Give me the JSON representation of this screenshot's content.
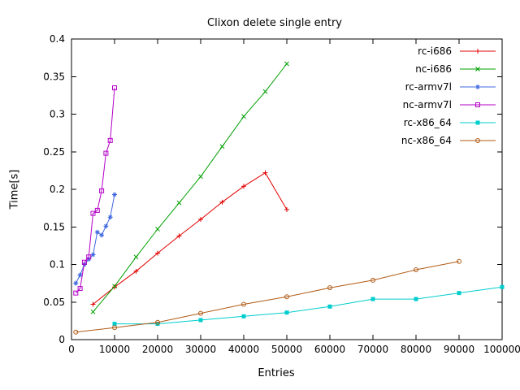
{
  "page": {
    "background": "#ffffff",
    "text_color": "#000000"
  },
  "chart_data": {
    "type": "line",
    "title": "Clixon delete single entry",
    "xlabel": "Entries",
    "ylabel": "Time[s]",
    "xlim": [
      0,
      100000
    ],
    "ylim": [
      0,
      0.4
    ],
    "x_ticks": [
      0,
      10000,
      20000,
      30000,
      40000,
      50000,
      60000,
      70000,
      80000,
      90000,
      100000
    ],
    "x_tick_labels": [
      "0",
      "10000",
      "20000",
      "30000",
      "40000",
      "50000",
      "60000",
      "70000",
      "80000",
      "90000",
      "100000"
    ],
    "y_ticks": [
      0,
      0.05,
      0.1,
      0.15,
      0.2,
      0.25,
      0.3,
      0.35,
      0.4
    ],
    "y_tick_labels": [
      "0",
      "0.05",
      "0.1",
      "0.15",
      "0.2",
      "0.25",
      "0.3",
      "0.35",
      "0.4"
    ],
    "grid": false,
    "legend_position": "top-right-inside",
    "axis_color": "#000000",
    "series": [
      {
        "name": "rc-i686",
        "color": "#e10000",
        "marker": "plus",
        "x": [
          5000,
          10000,
          15000,
          20000,
          25000,
          30000,
          35000,
          40000,
          45000,
          50000
        ],
        "y": [
          0.047,
          0.07,
          0.091,
          0.115,
          0.138,
          0.16,
          0.183,
          0.204,
          0.222,
          0.173
        ]
      },
      {
        "name": "nc-i686",
        "color": "#00a000",
        "marker": "cross",
        "x": [
          5000,
          10000,
          15000,
          20000,
          25000,
          30000,
          35000,
          40000,
          45000,
          50000
        ],
        "y": [
          0.037,
          0.071,
          0.11,
          0.147,
          0.182,
          0.217,
          0.257,
          0.297,
          0.33,
          0.367
        ]
      },
      {
        "name": "rc-armv7l",
        "color": "#4169e1",
        "marker": "asterisk",
        "x": [
          1000,
          2000,
          3000,
          4000,
          5000,
          6000,
          7000,
          8000,
          9000,
          10000
        ],
        "y": [
          0.075,
          0.086,
          0.1,
          0.107,
          0.113,
          0.143,
          0.139,
          0.151,
          0.163,
          0.193
        ]
      },
      {
        "name": "nc-armv7l",
        "color": "#b400c8",
        "marker": "square-open",
        "x": [
          1000,
          2000,
          3000,
          4000,
          5000,
          6000,
          7000,
          8000,
          9000,
          10000
        ],
        "y": [
          0.062,
          0.068,
          0.103,
          0.11,
          0.168,
          0.172,
          0.198,
          0.248,
          0.265,
          0.335
        ]
      },
      {
        "name": "rc-x86_64",
        "color": "#00cdcd",
        "marker": "square-filled",
        "x": [
          10000,
          20000,
          30000,
          40000,
          50000,
          60000,
          70000,
          80000,
          90000,
          100000
        ],
        "y": [
          0.021,
          0.021,
          0.026,
          0.031,
          0.036,
          0.044,
          0.054,
          0.054,
          0.062,
          0.07
        ]
      },
      {
        "name": "nc-x86_64",
        "color": "#b05a14",
        "marker": "circle-open",
        "x": [
          1000,
          10000,
          20000,
          30000,
          40000,
          50000,
          60000,
          70000,
          80000,
          90000
        ],
        "y": [
          0.01,
          0.016,
          0.023,
          0.035,
          0.047,
          0.057,
          0.069,
          0.079,
          0.093,
          0.104
        ]
      }
    ]
  }
}
